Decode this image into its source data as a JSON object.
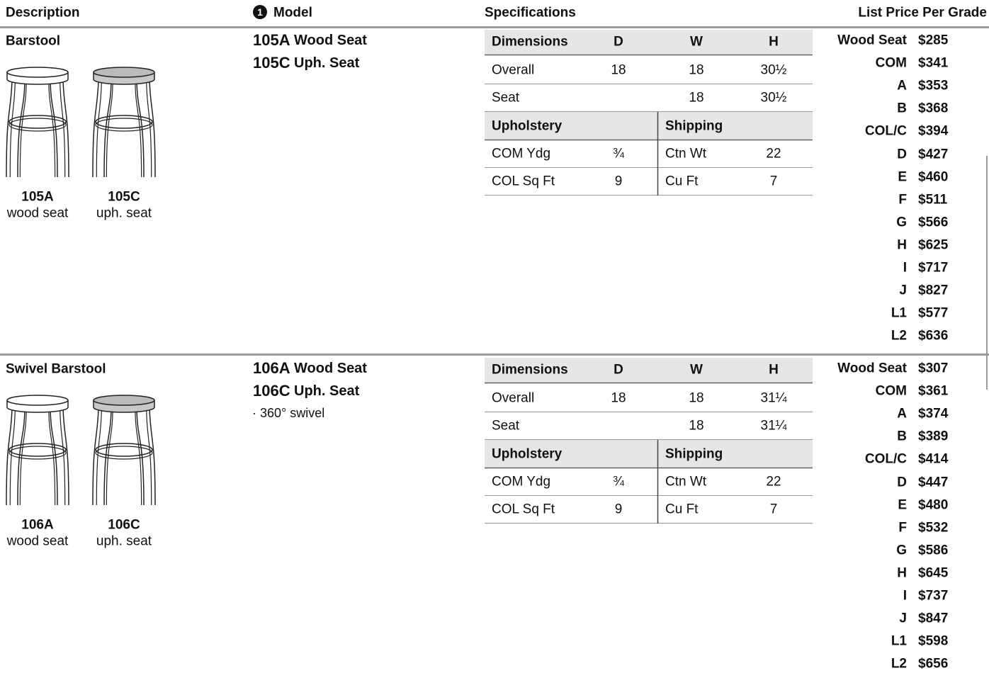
{
  "header": {
    "description": "Description",
    "model_marker": "1",
    "model": "Model",
    "specifications": "Specifications",
    "list_price": "List Price Per Grade"
  },
  "sections": [
    {
      "description": "Barstool",
      "images": [
        {
          "code": "105A",
          "caption": "wood seat"
        },
        {
          "code": "105C",
          "caption": "uph. seat"
        }
      ],
      "models": [
        {
          "code": "105A",
          "label": "Wood Seat"
        },
        {
          "code": "105C",
          "label": "Uph. Seat"
        }
      ],
      "notes": [],
      "specs": {
        "dimensions_header": [
          "Dimensions",
          "D",
          "W",
          "H"
        ],
        "dimension_rows": [
          [
            "Overall",
            "18",
            "18",
            "30½"
          ],
          [
            "Seat",
            null,
            "18",
            "30½"
          ]
        ],
        "upholstery_header": [
          "Upholstery",
          "Shipping"
        ],
        "upholstery_rows": [
          [
            "COM Ydg",
            "¾",
            "Ctn Wt",
            "22"
          ],
          [
            "COL Sq Ft",
            "9",
            "Cu Ft",
            "7"
          ]
        ]
      },
      "prices": [
        {
          "grade": "Wood Seat",
          "price": "$285"
        },
        {
          "grade": "COM",
          "price": "$341"
        },
        {
          "grade": "A",
          "price": "$353"
        },
        {
          "grade": "B",
          "price": "$368"
        },
        {
          "grade": "COL/C",
          "price": "$394"
        },
        {
          "grade": "D",
          "price": "$427"
        },
        {
          "grade": "E",
          "price": "$460"
        },
        {
          "grade": "F",
          "price": "$511"
        },
        {
          "grade": "G",
          "price": "$566"
        },
        {
          "grade": "H",
          "price": "$625"
        },
        {
          "grade": "I",
          "price": "$717"
        },
        {
          "grade": "J",
          "price": "$827"
        },
        {
          "grade": "L1",
          "price": "$577"
        },
        {
          "grade": "L2",
          "price": "$636"
        }
      ]
    },
    {
      "description": "Swivel Barstool",
      "images": [
        {
          "code": "106A",
          "caption": "wood seat"
        },
        {
          "code": "106C",
          "caption": "uph. seat"
        }
      ],
      "models": [
        {
          "code": "106A",
          "label": "Wood Seat"
        },
        {
          "code": "106C",
          "label": "Uph. Seat"
        }
      ],
      "notes": [
        "360° swivel"
      ],
      "specs": {
        "dimensions_header": [
          "Dimensions",
          "D",
          "W",
          "H"
        ],
        "dimension_rows": [
          [
            "Overall",
            "18",
            "18",
            "31¼"
          ],
          [
            "Seat",
            null,
            "18",
            "31¼"
          ]
        ],
        "upholstery_header": [
          "Upholstery",
          "Shipping"
        ],
        "upholstery_rows": [
          [
            "COM Ydg",
            "¾",
            "Ctn Wt",
            "22"
          ],
          [
            "COL Sq Ft",
            "9",
            "Cu Ft",
            "7"
          ]
        ]
      },
      "prices": [
        {
          "grade": "Wood Seat",
          "price": "$307"
        },
        {
          "grade": "COM",
          "price": "$361"
        },
        {
          "grade": "A",
          "price": "$374"
        },
        {
          "grade": "B",
          "price": "$389"
        },
        {
          "grade": "COL/C",
          "price": "$414"
        },
        {
          "grade": "D",
          "price": "$447"
        },
        {
          "grade": "E",
          "price": "$480"
        },
        {
          "grade": "F",
          "price": "$532"
        },
        {
          "grade": "G",
          "price": "$586"
        },
        {
          "grade": "H",
          "price": "$645"
        },
        {
          "grade": "I",
          "price": "$737"
        },
        {
          "grade": "J",
          "price": "$847"
        },
        {
          "grade": "L1",
          "price": "$598"
        },
        {
          "grade": "L2",
          "price": "$656"
        }
      ]
    }
  ]
}
